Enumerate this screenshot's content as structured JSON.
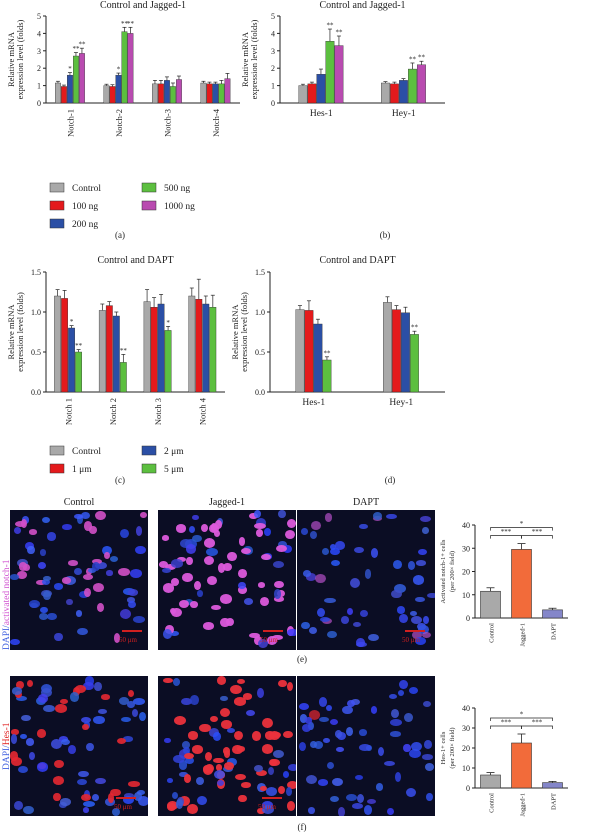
{
  "chart_data": [
    {
      "id": "a",
      "type": "bar",
      "panel_label": "(a)",
      "title": "Control and Jagged-1",
      "ylabel": "Relative mRNA expression level (folds)",
      "ylim": [
        0,
        5
      ],
      "yticks": [
        "0",
        "1",
        "2",
        "3",
        "4",
        "5"
      ],
      "categories": [
        "Notch-1",
        "Notch-2",
        "Notch-3",
        "Notch-4"
      ],
      "series": [
        {
          "name": "Control",
          "color": "#a9a9a9",
          "values": [
            1.15,
            1.0,
            1.1,
            1.15
          ],
          "err": [
            0.1,
            0.08,
            0.2,
            0.1
          ],
          "sig": [
            "",
            "",
            "",
            ""
          ]
        },
        {
          "name": "100 ng",
          "color": "#e41a1c",
          "values": [
            0.95,
            0.95,
            1.1,
            1.1
          ],
          "err": [
            0.08,
            0.1,
            0.2,
            0.1
          ],
          "sig": [
            "",
            "",
            "",
            ""
          ]
        },
        {
          "name": "200 ng",
          "color": "#2b4fa5",
          "values": [
            1.6,
            1.6,
            1.3,
            1.1
          ],
          "err": [
            0.15,
            0.12,
            0.2,
            0.1
          ],
          "sig": [
            "*",
            "*",
            "",
            ""
          ]
        },
        {
          "name": "500 ng",
          "color": "#5cbf3f",
          "values": [
            2.7,
            4.1,
            0.95,
            1.1
          ],
          "err": [
            0.2,
            0.25,
            0.2,
            0.2
          ],
          "sig": [
            "**",
            "**",
            "",
            ""
          ]
        },
        {
          "name": "1000 ng",
          "color": "#b94bb0",
          "values": [
            2.85,
            4.0,
            1.35,
            1.4
          ],
          "err": [
            0.3,
            0.35,
            0.2,
            0.3
          ],
          "sig": [
            "**",
            "**",
            "",
            ""
          ]
        }
      ],
      "legend": [
        "Control",
        "500 ng",
        "100 ng",
        "1000 ng",
        "200 ng"
      ]
    },
    {
      "id": "b",
      "type": "bar",
      "panel_label": "(b)",
      "title": "Control and Jagged-1",
      "ylabel": "Relative mRNA expression level (folds)",
      "ylim": [
        0,
        5
      ],
      "yticks": [
        "0",
        "1",
        "2",
        "3",
        "4",
        "5"
      ],
      "categories": [
        "Hes-1",
        "Hey-1"
      ],
      "series": [
        {
          "name": "Control",
          "color": "#a9a9a9",
          "values": [
            1.0,
            1.15
          ],
          "err": [
            0.08,
            0.08
          ],
          "sig": [
            "",
            ""
          ]
        },
        {
          "name": "100 ng",
          "color": "#e41a1c",
          "values": [
            1.1,
            1.1
          ],
          "err": [
            0.1,
            0.1
          ],
          "sig": [
            "",
            ""
          ]
        },
        {
          "name": "200 ng",
          "color": "#2b4fa5",
          "values": [
            1.65,
            1.3
          ],
          "err": [
            0.3,
            0.1
          ],
          "sig": [
            "",
            ""
          ]
        },
        {
          "name": "500 ng",
          "color": "#5cbf3f",
          "values": [
            3.55,
            1.95
          ],
          "err": [
            0.7,
            0.35
          ],
          "sig": [
            "**",
            "**"
          ]
        },
        {
          "name": "1000 ng",
          "color": "#b94bb0",
          "values": [
            3.3,
            2.2
          ],
          "err": [
            0.55,
            0.2
          ],
          "sig": [
            "**",
            "**"
          ]
        }
      ]
    },
    {
      "id": "c",
      "type": "bar",
      "panel_label": "(c)",
      "title": "Control and DAPT",
      "ylabel": "Relative mRNA expression level (folds)",
      "ylim": [
        0,
        1.5
      ],
      "yticks": [
        "0.0",
        "0.5",
        "1.0",
        "1.5"
      ],
      "categories": [
        "Notch 1",
        "Notch 2",
        "Notch 3",
        "Notch 4"
      ],
      "series": [
        {
          "name": "Control",
          "color": "#a9a9a9",
          "values": [
            1.2,
            1.02,
            1.13,
            1.2
          ],
          "err": [
            0.08,
            0.08,
            0.15,
            0.1
          ],
          "sig": [
            "",
            "",
            "",
            ""
          ]
        },
        {
          "name": "1 μm",
          "color": "#e41a1c",
          "values": [
            1.17,
            1.08,
            1.06,
            1.16
          ],
          "err": [
            0.1,
            0.05,
            0.12,
            0.25
          ],
          "sig": [
            "",
            "",
            "",
            ""
          ]
        },
        {
          "name": "2 μm",
          "color": "#2b4fa5",
          "values": [
            0.8,
            0.95,
            1.1,
            1.1
          ],
          "err": [
            0.03,
            0.05,
            0.12,
            0.1
          ],
          "sig": [
            "*",
            "",
            "",
            ""
          ]
        },
        {
          "name": "5 μm",
          "color": "#5cbf3f",
          "values": [
            0.5,
            0.37,
            0.77,
            1.06
          ],
          "err": [
            0.03,
            0.1,
            0.05,
            0.15
          ],
          "sig": [
            "**",
            "**",
            "*",
            ""
          ]
        }
      ],
      "legend": [
        "Control",
        "2 μm",
        "1 μm",
        "5 μm"
      ]
    },
    {
      "id": "d",
      "type": "bar",
      "panel_label": "(d)",
      "title": "Control and DAPT",
      "ylabel": "Relative mRNA expression level (folds)",
      "ylim": [
        0,
        1.5
      ],
      "yticks": [
        "0.0",
        "0.5",
        "1.0",
        "1.5"
      ],
      "categories": [
        "Hes-1",
        "Hey-1"
      ],
      "series": [
        {
          "name": "Control",
          "color": "#a9a9a9",
          "values": [
            1.03,
            1.12
          ],
          "err": [
            0.05,
            0.07
          ],
          "sig": [
            "",
            ""
          ]
        },
        {
          "name": "1 μm",
          "color": "#e41a1c",
          "values": [
            1.02,
            1.03
          ],
          "err": [
            0.12,
            0.05
          ],
          "sig": [
            "",
            ""
          ]
        },
        {
          "name": "2 μm",
          "color": "#2b4fa5",
          "values": [
            0.85,
            0.99
          ],
          "err": [
            0.06,
            0.07
          ],
          "sig": [
            "",
            ""
          ]
        },
        {
          "name": "5 μm",
          "color": "#5cbf3f",
          "values": [
            0.4,
            0.72
          ],
          "err": [
            0.04,
            0.04
          ],
          "sig": [
            "**",
            "**"
          ]
        }
      ]
    },
    {
      "id": "e",
      "type": "bar",
      "panel_label": "(e)",
      "ylabel": "Activated notch-1+ cells (per 200× field)",
      "ylim": [
        0,
        40
      ],
      "yticks": [
        "0",
        "10",
        "20",
        "30",
        "40"
      ],
      "categories": [
        "Control",
        "Jagged-1",
        "DAPT"
      ],
      "colors": [
        "#a9a9a9",
        "#f26b3a",
        "#8486c9"
      ],
      "values": [
        11.5,
        29.5,
        3.5
      ],
      "err": [
        1.5,
        2.5,
        0.7
      ],
      "brackets": [
        {
          "from": 0,
          "to": 1,
          "label": "***"
        },
        {
          "from": 1,
          "to": 2,
          "label": "***"
        },
        {
          "from": 0,
          "to": 2,
          "label": "*"
        }
      ]
    },
    {
      "id": "f",
      "type": "bar",
      "panel_label": "(f)",
      "ylabel": "Hes-1+ cells (per 200× field)",
      "ylim": [
        0,
        40
      ],
      "yticks": [
        "0",
        "10",
        "20",
        "30",
        "40"
      ],
      "categories": [
        "Control",
        "Jagged-1",
        "DAPT"
      ],
      "colors": [
        "#a9a9a9",
        "#f26b3a",
        "#8486c9"
      ],
      "values": [
        6.5,
        22.5,
        2.7
      ],
      "err": [
        1.2,
        4.5,
        0.6
      ],
      "brackets": [
        {
          "from": 0,
          "to": 1,
          "label": "***"
        },
        {
          "from": 1,
          "to": 2,
          "label": "***"
        },
        {
          "from": 0,
          "to": 2,
          "label": "*"
        }
      ]
    }
  ],
  "micrographs": {
    "e": {
      "headers": [
        "Control",
        "Jagged-1",
        "DAPT"
      ],
      "side_label_blue": "DAPI/",
      "side_label_colored": "activated notch-1",
      "side_label_color": "#d04fd0",
      "scale_text": "50 μm"
    },
    "f": {
      "side_label_blue": "DAPI/",
      "side_label_colored": "Hes-1",
      "side_label_color": "#e02020",
      "scale_text": "50 μm"
    }
  }
}
